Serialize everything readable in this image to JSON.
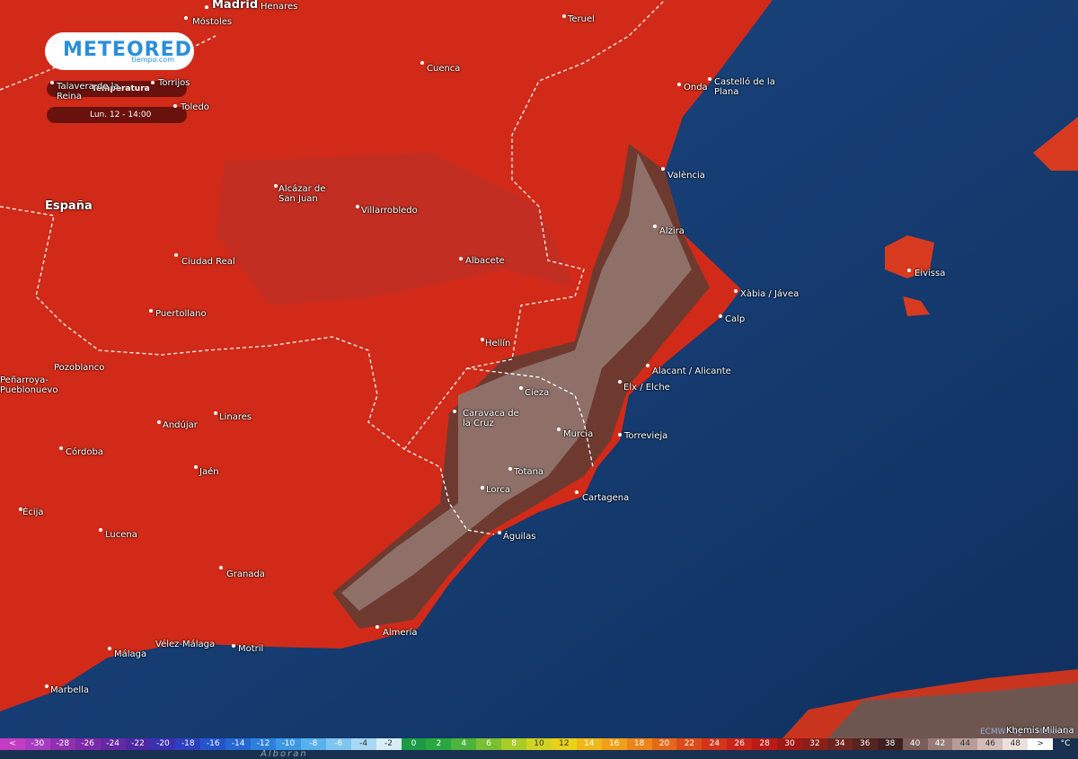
{
  "logo": {
    "name": "METEORED",
    "site": "tiempo.com"
  },
  "layer": "Temperatura",
  "time": "Lun. 12 - 14:00",
  "places": [
    "Madrid",
    "Henares",
    "Móstoles",
    "Teruel",
    "Cuenca",
    "Onda",
    "Castelló de la Plana",
    "Talavera de la Reina",
    "Torrijos",
    "Toledo",
    "España",
    "Alcázar de San Juan",
    "Villarrobledo",
    "València",
    "Alzira",
    "Albacete",
    "Ciudad Real",
    "Eivissa",
    "Xàbia / Jávea",
    "Calp",
    "Puertollano",
    "Hellín",
    "Alacant / Alicante",
    "Peñarroya-Pueblonuevo",
    "Pozoblanco",
    "Elx / Elche",
    "Cieza",
    "Caravaca de la Cruz",
    "Murcia",
    "Torrevieja",
    "Andújar",
    "Linares",
    "Córdoba",
    "Jaén",
    "Totana",
    "Lorca",
    "Cartagena",
    "Écija",
    "Lucena",
    "Águilas",
    "Granada",
    "Almería",
    "Málaga",
    "Vélez-Málaga",
    "Motril",
    "Marbella",
    "Khemis Miliana",
    "Alboran"
  ],
  "scale": {
    "below": "<",
    "values": [
      -30,
      -28,
      -26,
      -24,
      -22,
      -20,
      -18,
      -16,
      -14,
      -12,
      -10,
      -8,
      -6,
      -4,
      -2,
      0,
      2,
      4,
      6,
      8,
      10,
      12,
      14,
      16,
      18,
      20,
      22,
      24,
      26,
      28,
      30,
      32,
      34,
      36,
      38,
      40,
      42,
      44,
      46,
      48
    ],
    "above": ">",
    "unit": "°C",
    "colors": [
      "#c43cc4",
      "#a83cc0",
      "#9030b0",
      "#7a2aa8",
      "#6428a4",
      "#4e28a0",
      "#3a30b0",
      "#2c40c0",
      "#2454cc",
      "#2468d4",
      "#2c80dc",
      "#3c98e4",
      "#58b0ec",
      "#80c4f0",
      "#a8d8f4",
      "#d8eef4",
      "#1e9a44",
      "#2aa840",
      "#4ab43c",
      "#78c030",
      "#a8cc28",
      "#d0d420",
      "#e8d01c",
      "#f0b818",
      "#f0a018",
      "#ec8418",
      "#e46818",
      "#dc4c18",
      "#d43418",
      "#cc2418",
      "#bc1a14",
      "#a01814",
      "#882018",
      "#6e2420",
      "#542420",
      "#3e2020",
      "#7a5c58",
      "#987c78",
      "#b89c98",
      "#d4bcb8",
      "#ece0dc",
      "#ffffff"
    ]
  },
  "credit": "ECMWF by © Meteored"
}
